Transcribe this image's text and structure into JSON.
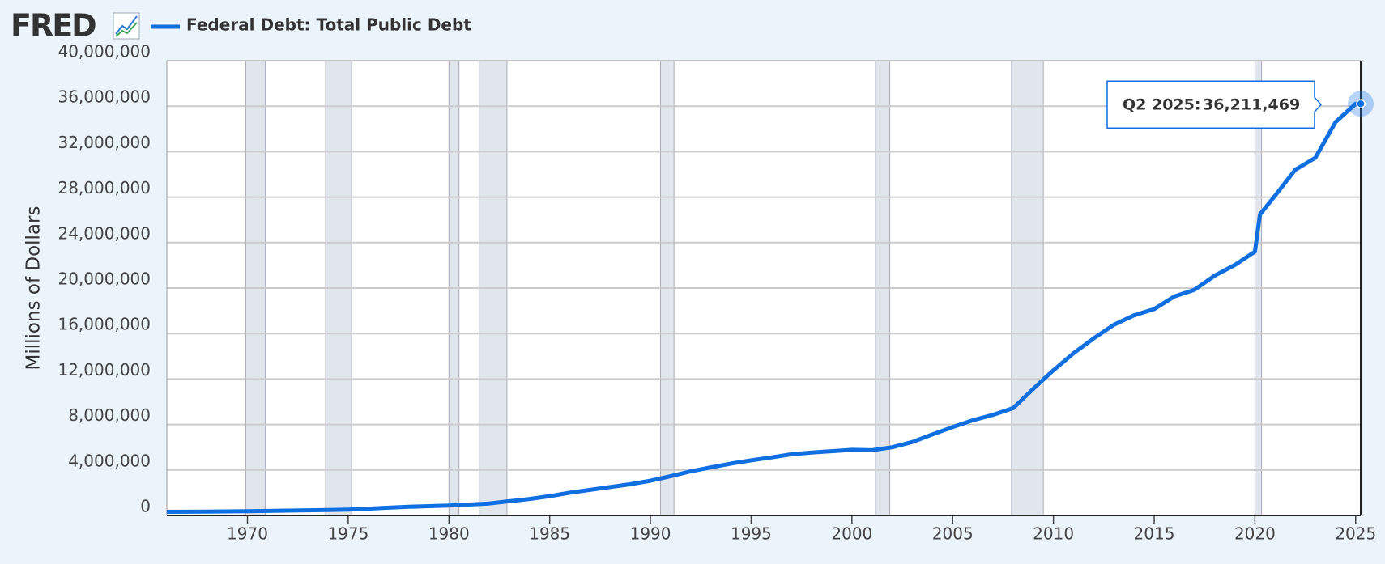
{
  "logo": "FRED",
  "chart_data": {
    "type": "line",
    "ylabel": "Millions of Dollars",
    "x": [
      1966,
      1967,
      1968,
      1969,
      1970,
      1971,
      1972,
      1973,
      1974,
      1975,
      1976,
      1977,
      1978,
      1979,
      1980,
      1981,
      1982,
      1983,
      1984,
      1985,
      1986,
      1987,
      1988,
      1989,
      1990,
      1991,
      1992,
      1993,
      1994,
      1995,
      1996,
      1997,
      1998,
      1999,
      2000,
      2001,
      2002,
      2003,
      2004,
      2005,
      2006,
      2007,
      2008,
      2009,
      2010,
      2011,
      2012,
      2013,
      2014,
      2015,
      2016,
      2017,
      2018,
      2019,
      2020,
      2020.25,
      2021,
      2022,
      2023,
      2024,
      2025,
      2025.25
    ],
    "series": [
      {
        "name": "Federal Debt: Total Public Debt",
        "color": "#0f6fe0",
        "values": [
          320000,
          330000,
          345000,
          355000,
          370000,
          400000,
          425000,
          455000,
          475000,
          510000,
          600000,
          680000,
          760000,
          820000,
          870000,
          960000,
          1050000,
          1250000,
          1450000,
          1700000,
          2000000,
          2250000,
          2500000,
          2750000,
          3050000,
          3450000,
          3880000,
          4230000,
          4560000,
          4850000,
          5100000,
          5380000,
          5540000,
          5650000,
          5770000,
          5740000,
          6000000,
          6460000,
          7130000,
          7770000,
          8370000,
          8850000,
          9440000,
          11130000,
          12770000,
          14270000,
          15580000,
          16770000,
          17600000,
          18150000,
          19260000,
          19850000,
          21090000,
          22030000,
          23200000,
          26480000,
          28130000,
          30400000,
          31460000,
          34590000,
          36210000,
          36211469
        ],
        "value_labels": [
          null,
          null,
          null,
          null,
          null,
          null,
          null,
          null,
          null,
          null,
          null,
          null,
          null,
          null,
          null,
          null,
          null,
          null,
          null,
          null,
          null,
          null,
          null,
          null,
          null,
          null,
          null,
          null,
          null,
          null,
          null,
          null,
          null,
          null,
          null,
          null,
          null,
          null,
          null,
          null,
          null,
          null,
          null,
          null,
          null,
          null,
          null,
          null,
          null,
          null,
          null,
          null,
          null,
          null,
          null,
          null,
          null,
          null,
          null,
          null,
          null,
          "36,211,469"
        ]
      }
    ],
    "tooltip_period": "Q2 2025:",
    "recessions": [
      [
        1969.92,
        1970.88
      ],
      [
        1973.88,
        1975.17
      ],
      [
        1980.0,
        1980.5
      ],
      [
        1981.5,
        1982.88
      ],
      [
        1990.5,
        1991.17
      ],
      [
        2001.17,
        2001.88
      ],
      [
        2007.92,
        2009.5
      ],
      [
        2020.0,
        2020.33
      ]
    ],
    "xlim": [
      1966,
      2025.25
    ],
    "xticks": [
      1970,
      1975,
      1980,
      1985,
      1990,
      1995,
      2000,
      2005,
      2010,
      2015,
      2020,
      2025
    ],
    "ylim": [
      0,
      40000000
    ],
    "yticks": [
      0,
      {
        "value": 4000000,
        "label": "4,000,000"
      },
      {
        "value": 8000000,
        "label": "8,000,000"
      },
      {
        "value": 12000000,
        "label": "12,000,000"
      },
      {
        "value": 16000000,
        "label": "16,000,000"
      },
      {
        "value": 20000000,
        "label": "20,000,000"
      },
      {
        "value": 24000000,
        "label": "24,000,000"
      },
      {
        "value": 28000000,
        "label": "28,000,000"
      },
      {
        "value": 32000000,
        "label": "32,000,000"
      },
      {
        "value": 36000000,
        "label": "36,000,000"
      },
      {
        "value": 40000000,
        "label": "40,000,000"
      }
    ],
    "grid": true
  }
}
